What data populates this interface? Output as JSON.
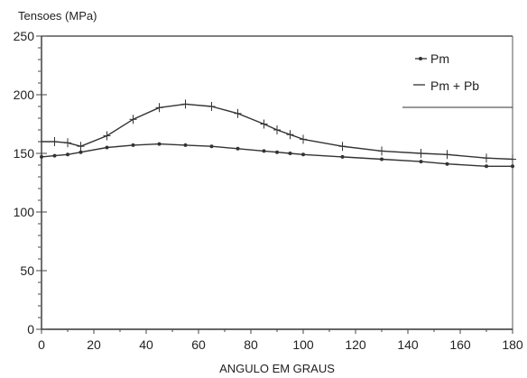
{
  "chart_data": {
    "type": "line",
    "title": "",
    "ylabel": "Tensoes (MPa)",
    "xlabel": "ANGULO EM GRAUS",
    "xlim": [
      0,
      180
    ],
    "ylim": [
      0,
      250
    ],
    "xticks": [
      0,
      20,
      40,
      60,
      80,
      100,
      120,
      140,
      160,
      180
    ],
    "yticks": [
      0,
      50,
      100,
      150,
      200,
      250
    ],
    "grid": false,
    "legend_position": "top-right",
    "series": [
      {
        "name": "Pm",
        "marker": "dot",
        "x": [
          0,
          5,
          10,
          15,
          25,
          35,
          45,
          55,
          65,
          75,
          85,
          90,
          95,
          100,
          115,
          130,
          145,
          155,
          170,
          180
        ],
        "y": [
          147,
          148,
          149,
          151,
          155,
          157,
          158,
          157,
          156,
          154,
          152,
          151,
          150,
          149,
          147,
          145,
          143,
          141,
          139,
          139
        ]
      },
      {
        "name": "Pm + Pb",
        "marker": "plus",
        "x": [
          0,
          5,
          10,
          15,
          25,
          35,
          45,
          55,
          65,
          75,
          85,
          90,
          95,
          100,
          115,
          130,
          145,
          155,
          170,
          180
        ],
        "y": [
          160,
          160,
          159,
          156,
          165,
          179,
          189,
          192,
          190,
          184,
          175,
          170,
          166,
          162,
          156,
          152,
          150,
          149,
          146,
          145
        ]
      }
    ]
  }
}
